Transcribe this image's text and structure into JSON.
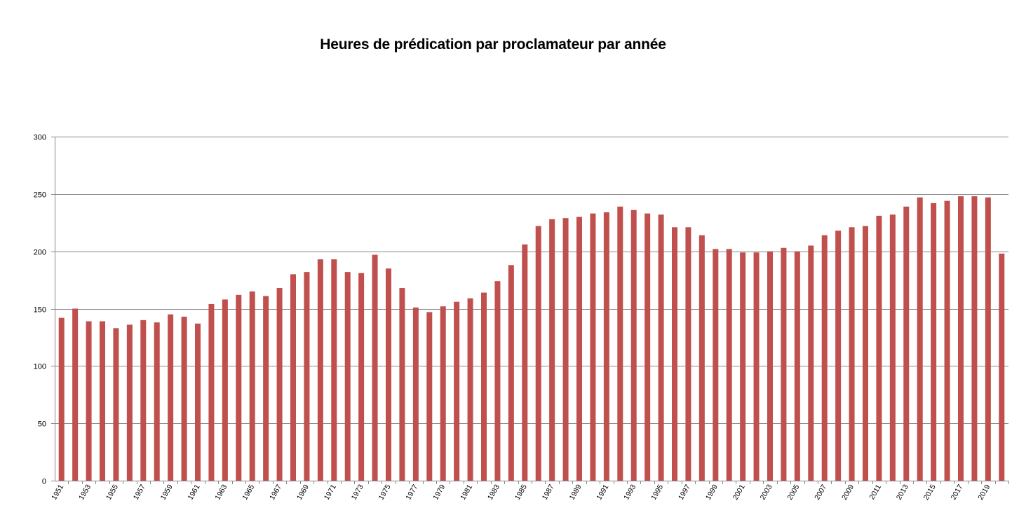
{
  "chart_data": {
    "type": "bar",
    "title": "Heures de prédication par proclamateur par année",
    "xlabel": "",
    "ylabel": "",
    "ylim": [
      0,
      300
    ],
    "yticks": [
      0,
      50,
      100,
      150,
      200,
      250,
      300
    ],
    "grid": true,
    "legend": "none",
    "bar_color": "#c0504d",
    "categories": [
      "1951",
      "1952",
      "1953",
      "1954",
      "1955",
      "1956",
      "1957",
      "1958",
      "1959",
      "1960",
      "1961",
      "1962",
      "1963",
      "1964",
      "1965",
      "1966",
      "1967",
      "1968",
      "1969",
      "1970",
      "1971",
      "1972",
      "1973",
      "1974",
      "1975",
      "1976",
      "1977",
      "1978",
      "1979",
      "1980",
      "1981",
      "1982",
      "1983",
      "1984",
      "1985",
      "1986",
      "1987",
      "1988",
      "1989",
      "1990",
      "1991",
      "1992",
      "1993",
      "1994",
      "1995",
      "1996",
      "1997",
      "1998",
      "1999",
      "2000",
      "2001",
      "2002",
      "2003",
      "2004",
      "2005",
      "2006",
      "2007",
      "2008",
      "2009",
      "2010",
      "2011",
      "2012",
      "2013",
      "2014",
      "2015",
      "2016",
      "2017",
      "2018",
      "2019",
      "2020"
    ],
    "x_tick_labels": [
      "1951",
      "1953",
      "1955",
      "1957",
      "1959",
      "1961",
      "1963",
      "1965",
      "1967",
      "1969",
      "1971",
      "1973",
      "1975",
      "1977",
      "1979",
      "1981",
      "1983",
      "1985",
      "1987",
      "1989",
      "1991",
      "1993",
      "1995",
      "1997",
      "1999",
      "2001",
      "2003",
      "2005",
      "2007",
      "2009",
      "2011",
      "2013",
      "2015",
      "2017",
      "2019"
    ],
    "values": [
      142,
      150,
      139,
      139,
      133,
      136,
      140,
      138,
      145,
      143,
      137,
      154,
      158,
      162,
      165,
      161,
      168,
      180,
      182,
      193,
      193,
      182,
      181,
      197,
      185,
      168,
      151,
      147,
      152,
      156,
      159,
      164,
      174,
      188,
      206,
      222,
      228,
      229,
      230,
      233,
      234,
      239,
      236,
      233,
      232,
      221,
      221,
      214,
      202,
      202,
      199,
      199,
      200,
      203,
      200,
      205,
      214,
      218,
      221,
      222,
      231,
      232,
      239,
      247,
      242,
      244,
      248,
      248,
      247,
      198
    ]
  }
}
